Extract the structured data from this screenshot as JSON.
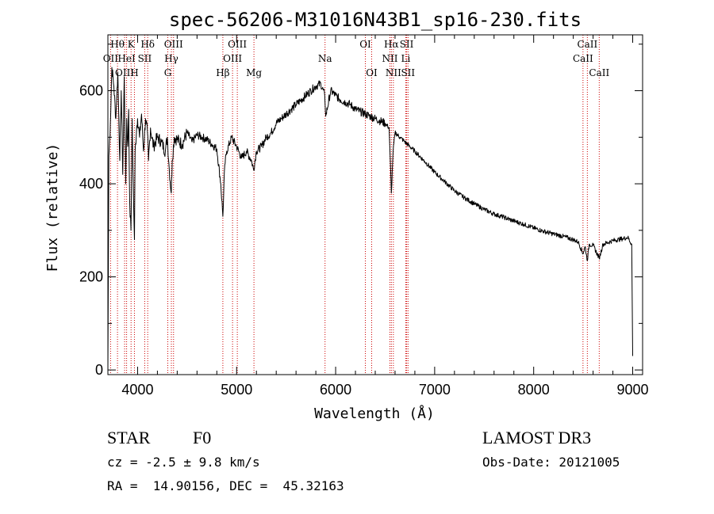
{
  "chart_data": {
    "type": "line",
    "title": "spec-56206-M31016N43B1_sp16-230.fits",
    "xlabel": "Wavelength (Å)",
    "ylabel": "Flux (relative)",
    "xlim": [
      3700,
      9100
    ],
    "ylim": [
      -10,
      720
    ],
    "xticks": [
      4000,
      5000,
      6000,
      7000,
      8000,
      9000
    ],
    "yticks": [
      0,
      200,
      400,
      600
    ],
    "series": [
      {
        "name": "flux",
        "x": [
          3700,
          3705,
          3710,
          3725,
          3740,
          3760,
          3780,
          3800,
          3820,
          3835,
          3850,
          3865,
          3880,
          3890,
          3900,
          3910,
          3920,
          3933,
          3945,
          3960,
          3968,
          3975,
          3990,
          4000,
          4020,
          4040,
          4060,
          4080,
          4100,
          4110,
          4130,
          4160,
          4200,
          4240,
          4280,
          4300,
          4320,
          4340,
          4350,
          4370,
          4400,
          4450,
          4500,
          4550,
          4600,
          4650,
          4700,
          4750,
          4800,
          4840,
          4861,
          4880,
          4900,
          4950,
          5000,
          5050,
          5100,
          5150,
          5172,
          5200,
          5250,
          5300,
          5350,
          5400,
          5450,
          5500,
          5550,
          5600,
          5650,
          5700,
          5750,
          5800,
          5850,
          5890,
          5900,
          5950,
          6000,
          6050,
          6100,
          6150,
          6200,
          6250,
          6300,
          6350,
          6400,
          6450,
          6500,
          6540,
          6563,
          6580,
          6600,
          6650,
          6700,
          6750,
          6800,
          6900,
          7000,
          7100,
          7200,
          7300,
          7400,
          7500,
          7600,
          7700,
          7800,
          7900,
          8000,
          8100,
          8200,
          8300,
          8400,
          8450,
          8498,
          8520,
          8542,
          8560,
          8600,
          8662,
          8700,
          8800,
          8900,
          8950,
          8990,
          8995,
          9000
        ],
        "y": [
          0,
          230,
          460,
          530,
          650,
          610,
          540,
          640,
          450,
          600,
          420,
          630,
          400,
          540,
          480,
          560,
          360,
          300,
          540,
          350,
          280,
          470,
          520,
          540,
          500,
          550,
          470,
          540,
          510,
          450,
          520,
          480,
          500,
          490,
          470,
          500,
          430,
          380,
          450,
          500,
          495,
          485,
          510,
          490,
          505,
          500,
          495,
          485,
          475,
          400,
          330,
          440,
          470,
          500,
          480,
          455,
          470,
          450,
          430,
          470,
          480,
          500,
          510,
          530,
          540,
          550,
          560,
          570,
          580,
          590,
          600,
          610,
          615,
          590,
          545,
          600,
          590,
          580,
          575,
          570,
          560,
          555,
          550,
          545,
          540,
          535,
          530,
          520,
          380,
          470,
          510,
          500,
          490,
          480,
          470,
          448,
          425,
          405,
          385,
          370,
          357,
          345,
          335,
          328,
          320,
          313,
          305,
          298,
          292,
          287,
          280,
          275,
          250,
          265,
          235,
          270,
          268,
          240,
          270,
          278,
          282,
          285,
          270,
          150,
          30
        ]
      }
    ],
    "line_markers": [
      {
        "label": "Hθ",
        "wavelength": 3797,
        "row": 0
      },
      {
        "label": "K",
        "wavelength": 3934,
        "row": 0
      },
      {
        "label": "Hδ",
        "wavelength": 4102,
        "row": 0
      },
      {
        "label": "OIII",
        "wavelength": 4363,
        "row": 0
      },
      {
        "label": "OIII",
        "wavelength": 5007,
        "row": 0
      },
      {
        "label": "OI",
        "wavelength": 6300,
        "row": 0
      },
      {
        "label": "Hα",
        "wavelength": 6563,
        "row": 0
      },
      {
        "label": "SII",
        "wavelength": 6717,
        "row": 0
      },
      {
        "label": "CaII",
        "wavelength": 8542,
        "row": 0
      },
      {
        "label": "OII",
        "wavelength": 3727,
        "row": 1
      },
      {
        "label": "HeI",
        "wavelength": 3889,
        "row": 1
      },
      {
        "label": "SII",
        "wavelength": 4072,
        "row": 1
      },
      {
        "label": "Hγ",
        "wavelength": 4341,
        "row": 1
      },
      {
        "label": "OIII",
        "wavelength": 4959,
        "row": 1
      },
      {
        "label": "Na",
        "wavelength": 5893,
        "row": 1
      },
      {
        "label": "NII",
        "wavelength": 6548,
        "row": 1
      },
      {
        "label": "Li",
        "wavelength": 6708,
        "row": 1
      },
      {
        "label": "CaII",
        "wavelength": 8498,
        "row": 1
      },
      {
        "label": "OIII",
        "wavelength": 3869,
        "row": 2
      },
      {
        "label": "H",
        "wavelength": 3968,
        "row": 2
      },
      {
        "label": "G",
        "wavelength": 4305,
        "row": 2
      },
      {
        "label": "Hβ",
        "wavelength": 4861,
        "row": 2
      },
      {
        "label": "Mg",
        "wavelength": 5175,
        "row": 2
      },
      {
        "label": "OI",
        "wavelength": 6364,
        "row": 2
      },
      {
        "label": "NII",
        "wavelength": 6583,
        "row": 2
      },
      {
        "label": "SII",
        "wavelength": 6731,
        "row": 2
      },
      {
        "label": "CaII",
        "wavelength": 8662,
        "row": 2
      }
    ],
    "colors": {
      "line": "#000000",
      "marker": "#cc0000",
      "axes": "#000000"
    }
  },
  "info": {
    "object_class": "STAR",
    "subclass": "F0",
    "redshift": "cz = -2.5 ± 9.8 km/s",
    "coords": "RA =  14.90156, DEC =  45.32163",
    "survey": "LAMOST DR3",
    "obs_date": "Obs-Date: 20121005"
  }
}
